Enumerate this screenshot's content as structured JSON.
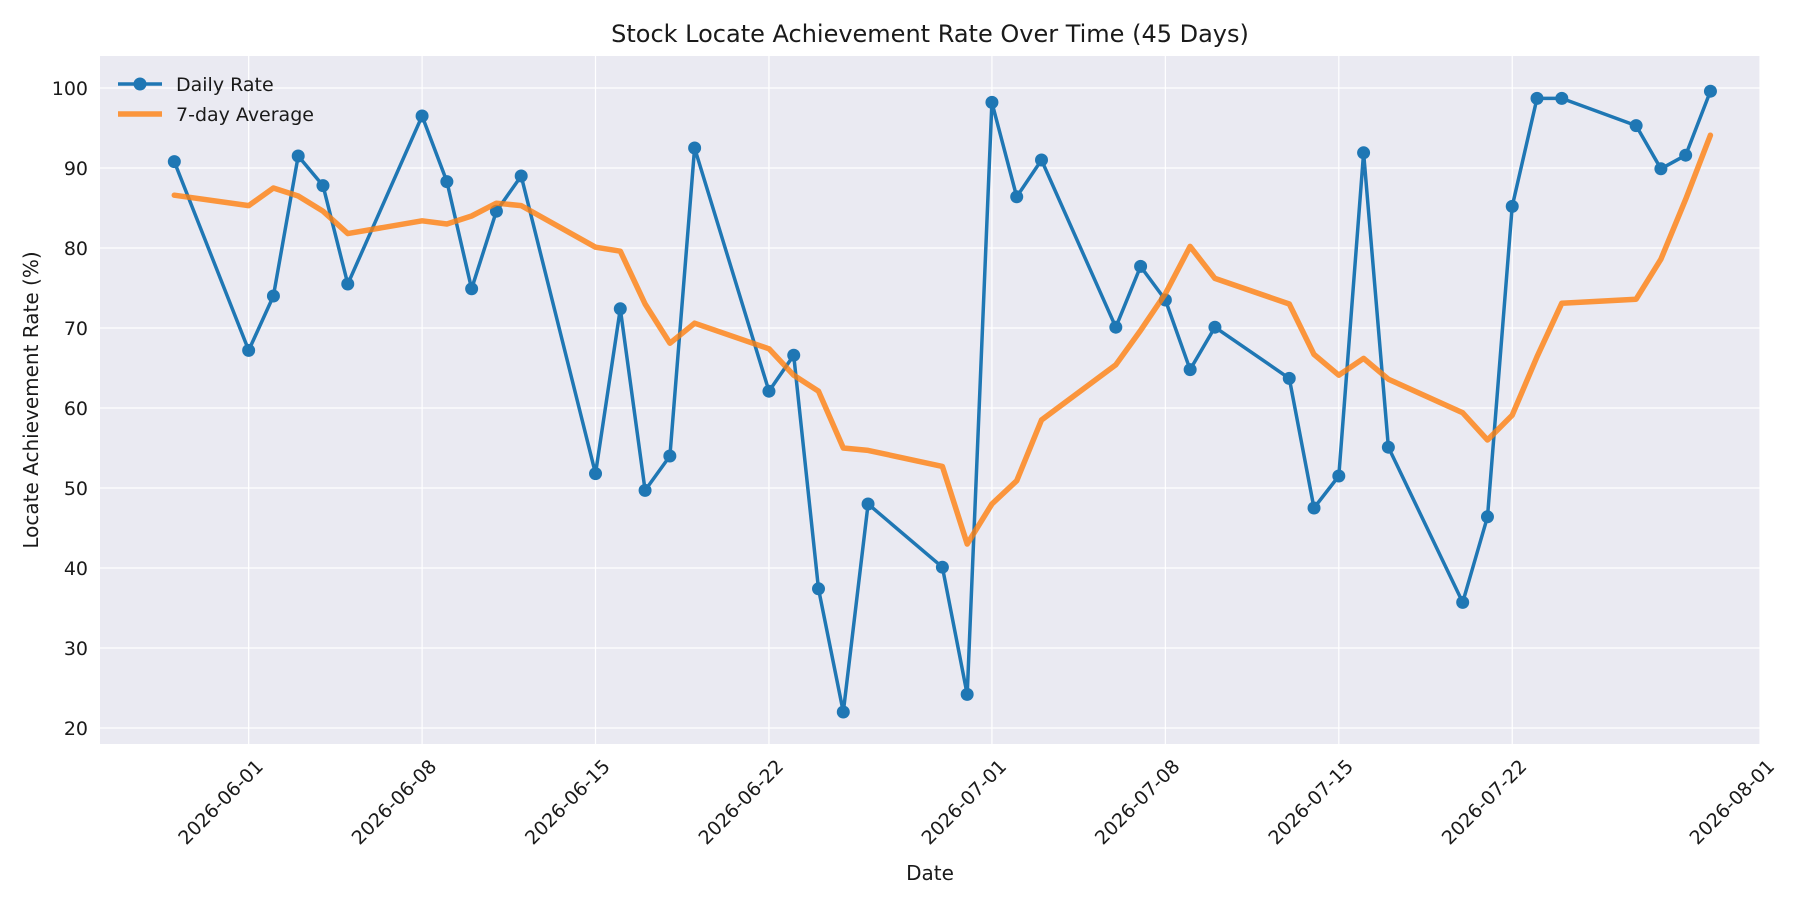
{
  "chart_data": {
    "type": "line",
    "title": "Stock Locate Achievement Rate Over Time (45 Days)",
    "xlabel": "Date",
    "ylabel": "Locate Achievement Rate (%)",
    "xlim": [
      "2026-05-26",
      "2026-08-01"
    ],
    "ylim": [
      18,
      104
    ],
    "yticks": [
      20,
      30,
      40,
      50,
      60,
      70,
      80,
      90,
      100
    ],
    "xticks": [
      "2026-06-01",
      "2026-06-08",
      "2026-06-15",
      "2026-06-22",
      "2026-07-01",
      "2026-07-08",
      "2026-07-15",
      "2026-07-22",
      "2026-08-01"
    ],
    "grid": true,
    "legend_position": "upper-left",
    "colors": {
      "plot_background": "#eaeaf2",
      "grid": "#ffffff",
      "daily": "#1f77b4",
      "average": "#ff7f0e"
    },
    "series": [
      {
        "name": "Daily Rate",
        "x": [
          "2026-05-29",
          "2026-06-01",
          "2026-06-02",
          "2026-06-03",
          "2026-06-04",
          "2026-06-05",
          "2026-06-08",
          "2026-06-09",
          "2026-06-10",
          "2026-06-11",
          "2026-06-12",
          "2026-06-15",
          "2026-06-16",
          "2026-06-17",
          "2026-06-18",
          "2026-06-19",
          "2026-06-22",
          "2026-06-23",
          "2026-06-24",
          "2026-06-25",
          "2026-06-26",
          "2026-06-29",
          "2026-06-30",
          "2026-07-01",
          "2026-07-02",
          "2026-07-03",
          "2026-07-06",
          "2026-07-07",
          "2026-07-08",
          "2026-07-09",
          "2026-07-10",
          "2026-07-13",
          "2026-07-14",
          "2026-07-15",
          "2026-07-16",
          "2026-07-17",
          "2026-07-20",
          "2026-07-21",
          "2026-07-22",
          "2026-07-23",
          "2026-07-24",
          "2026-07-27",
          "2026-07-28",
          "2026-07-29",
          "2026-07-30"
        ],
        "values": [
          90.8,
          67.2,
          74.0,
          91.5,
          87.8,
          75.5,
          96.5,
          88.3,
          74.9,
          84.6,
          89.0,
          51.8,
          72.4,
          49.7,
          54.0,
          92.5,
          62.1,
          66.6,
          37.4,
          22.0,
          48.0,
          40.1,
          24.2,
          98.2,
          86.4,
          91.0,
          70.1,
          77.7,
          73.5,
          64.8,
          70.1,
          63.7,
          47.5,
          51.5,
          91.9,
          55.1,
          35.7,
          46.4,
          85.2,
          98.7,
          98.7,
          95.3,
          89.9,
          91.6,
          99.6
        ]
      },
      {
        "name": "7-day Average",
        "x": [
          "2026-05-29",
          "2026-06-01",
          "2026-06-02",
          "2026-06-03",
          "2026-06-04",
          "2026-06-05",
          "2026-06-08",
          "2026-06-09",
          "2026-06-10",
          "2026-06-11",
          "2026-06-12",
          "2026-06-15",
          "2026-06-16",
          "2026-06-17",
          "2026-06-18",
          "2026-06-19",
          "2026-06-22",
          "2026-06-23",
          "2026-06-24",
          "2026-06-25",
          "2026-06-26",
          "2026-06-29",
          "2026-06-30",
          "2026-07-01",
          "2026-07-02",
          "2026-07-03",
          "2026-07-06",
          "2026-07-07",
          "2026-07-08",
          "2026-07-09",
          "2026-07-10",
          "2026-07-13",
          "2026-07-14",
          "2026-07-15",
          "2026-07-16",
          "2026-07-17",
          "2026-07-20",
          "2026-07-21",
          "2026-07-22",
          "2026-07-23",
          "2026-07-24",
          "2026-07-27",
          "2026-07-28",
          "2026-07-29",
          "2026-07-30"
        ],
        "values": [
          86.6,
          85.3,
          87.5,
          86.5,
          84.6,
          81.8,
          83.4,
          83.0,
          84.0,
          85.6,
          85.3,
          80.1,
          79.6,
          73.0,
          68.1,
          70.6,
          67.4,
          64.1,
          62.1,
          55.0,
          54.7,
          52.7,
          43.0,
          48.0,
          50.9,
          58.5,
          65.4,
          69.7,
          74.3,
          80.2,
          76.2,
          73.0,
          66.7,
          64.1,
          66.2,
          63.6,
          59.4,
          56.0,
          59.1,
          66.4,
          73.1,
          73.6,
          78.6,
          86.1,
          94.1
        ]
      }
    ]
  }
}
